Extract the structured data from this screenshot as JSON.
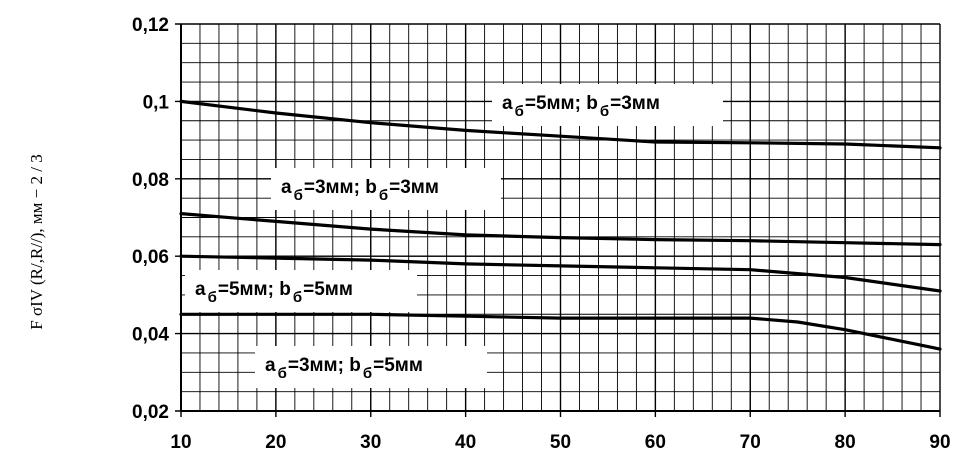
{
  "chart_data": {
    "type": "line",
    "title": "",
    "xlabel": "",
    "ylabel": "F σIV (R/,R//), мм − 2 / 3",
    "xlim": [
      10,
      90
    ],
    "ylim": [
      0.02,
      0.12
    ],
    "x_ticks": [
      10,
      20,
      30,
      40,
      50,
      60,
      70,
      80,
      90
    ],
    "x_tick_labels": [
      "10",
      "20",
      "30",
      "40",
      "50",
      "60",
      "70",
      "80",
      "90"
    ],
    "y_ticks": [
      0.02,
      0.04,
      0.06,
      0.08,
      0.1,
      0.12
    ],
    "y_tick_labels": [
      "0,02",
      "0,04",
      "0,06",
      "0,08",
      "0,1",
      "0,12"
    ],
    "grid": true,
    "legend": "none",
    "series": [
      {
        "x": [
          10,
          20,
          30,
          40,
          50,
          60,
          70,
          80,
          90
        ],
        "values": [
          0.1,
          0.097,
          0.0945,
          0.0925,
          0.091,
          0.0895,
          0.0893,
          0.089,
          0.088
        ]
      },
      {
        "x": [
          10,
          20,
          30,
          40,
          50,
          60,
          70,
          80,
          90
        ],
        "values": [
          0.071,
          0.069,
          0.067,
          0.0655,
          0.0648,
          0.0643,
          0.064,
          0.0635,
          0.063
        ]
      },
      {
        "x": [
          10,
          20,
          30,
          40,
          50,
          60,
          70,
          75,
          80,
          90
        ],
        "values": [
          0.06,
          0.0595,
          0.059,
          0.058,
          0.0575,
          0.057,
          0.0565,
          0.0555,
          0.0545,
          0.051
        ]
      },
      {
        "x": [
          10,
          20,
          30,
          40,
          50,
          60,
          70,
          75,
          80,
          90
        ],
        "values": [
          0.045,
          0.045,
          0.045,
          0.0445,
          0.044,
          0.044,
          0.044,
          0.043,
          0.041,
          0.036
        ]
      }
    ],
    "annotations": [
      {
        "a": "a",
        "a_sub": "б",
        "a_val": "=5мм; ",
        "b": "b",
        "b_sub": "б",
        "b_val": "=3мм"
      },
      {
        "a": "a",
        "a_sub": "б",
        "a_val": "=3мм; ",
        "b": "b",
        "b_sub": "б",
        "b_val": "=3мм"
      },
      {
        "a": "a",
        "a_sub": "б",
        "a_val": "=5мм; ",
        "b": "b",
        "b_sub": "б",
        "b_val": "=5мм"
      },
      {
        "a": "a",
        "a_sub": "б",
        "a_val": "=3мм; ",
        "b": "b",
        "b_sub": "б",
        "b_val": "=5мм"
      }
    ]
  }
}
